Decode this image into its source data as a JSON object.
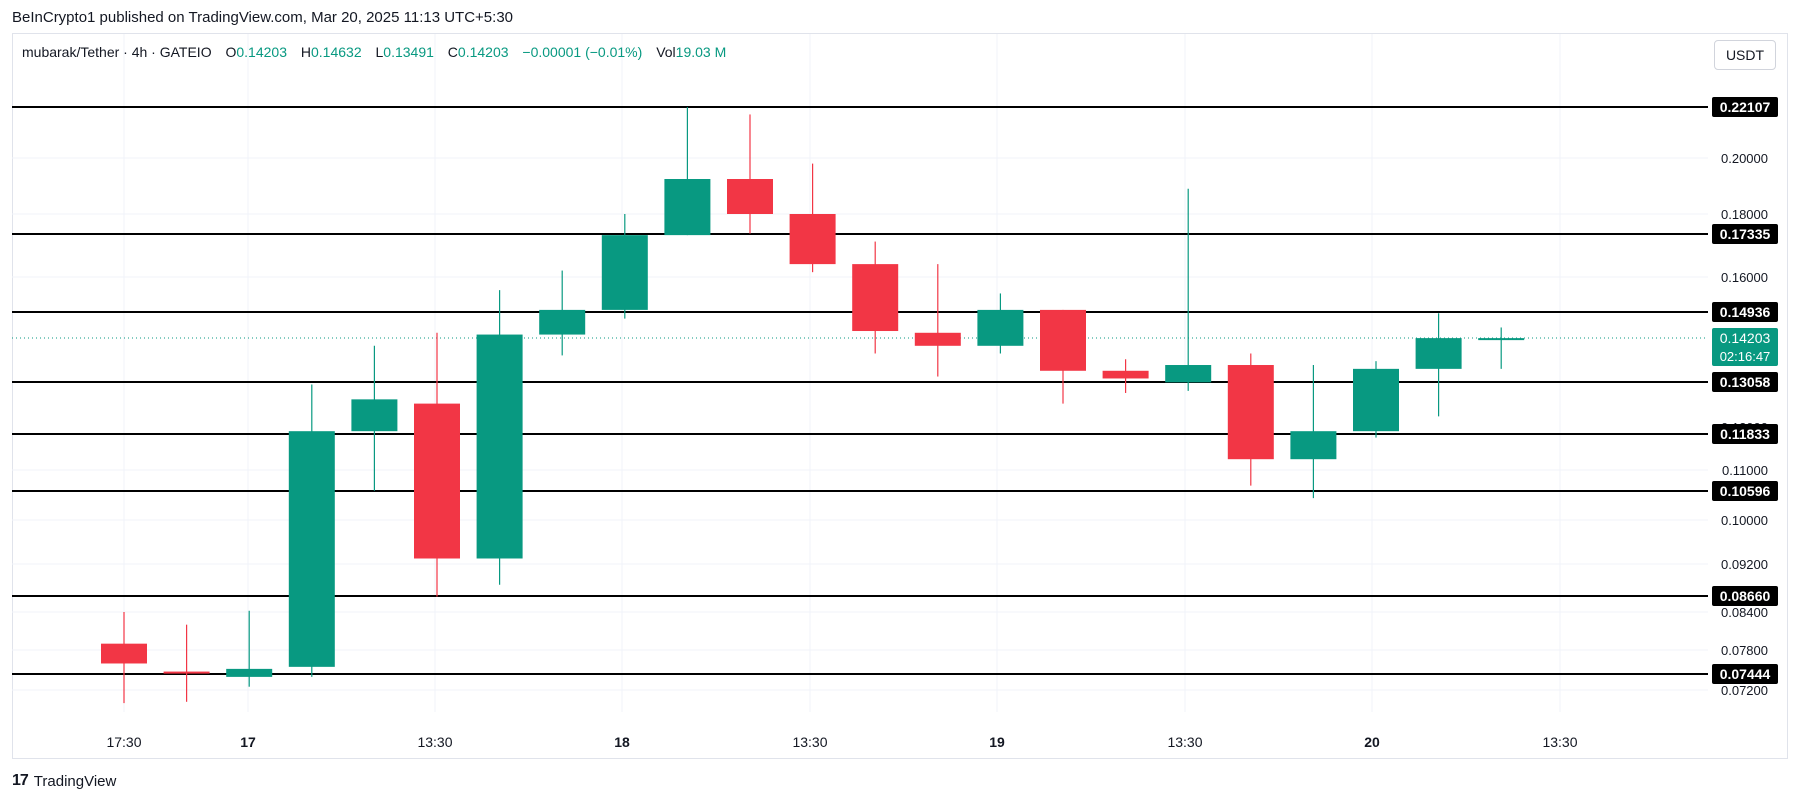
{
  "published_line": "BeInCrypto1 published on TradingView.com, Mar 20, 2025 11:13 UTC+5:30",
  "header": {
    "symbol": "mubarak/Tether · 4h · GATEIO",
    "o_label": "O",
    "o_value": "0.14203",
    "h_label": "H",
    "h_value": "0.14632",
    "l_label": "L",
    "l_value": "0.13491",
    "c_label": "C",
    "c_value": "0.14203",
    "change": "−0.00001 (−0.01%)",
    "vol_label": "Vol",
    "vol_value": "19.03 M"
  },
  "currency_button": "USDT",
  "footer": {
    "logo_mark": "17",
    "brand": "TradingView"
  },
  "colors": {
    "up": "#089981",
    "down": "#f23645",
    "grid": "#f0f3fa",
    "level": "#000000",
    "current": "#089981"
  },
  "chart_data": {
    "type": "candlestick",
    "title": "",
    "y_axis_ticks": [
      "0.20000",
      "0.18000",
      "0.16000",
      "0.11000",
      "0.10000",
      "0.09200",
      "0.08400",
      "0.07800",
      "0.07200"
    ],
    "y_axis_partially_hidden": [
      "0.12000"
    ],
    "x_axis_ticks": [
      "17:30",
      "17",
      "13:30",
      "18",
      "13:30",
      "19",
      "13:30",
      "20",
      "13:30"
    ],
    "horizontal_levels": [
      "0.22107",
      "0.17335",
      "0.14936",
      "0.13058",
      "0.11833",
      "0.10596",
      "0.08660",
      "0.07444"
    ],
    "current_price": "0.14203",
    "countdown": "02:16:47",
    "candles": [
      {
        "open": 0.079,
        "high": 0.084,
        "low": 0.07,
        "close": 0.076
      },
      {
        "open": 0.0748,
        "high": 0.082,
        "low": 0.0702,
        "close": 0.0745
      },
      {
        "open": 0.074,
        "high": 0.0842,
        "low": 0.0725,
        "close": 0.0752
      },
      {
        "open": 0.0755,
        "high": 0.13,
        "low": 0.074,
        "close": 0.119
      },
      {
        "open": 0.119,
        "high": 0.14,
        "low": 0.106,
        "close": 0.1265
      },
      {
        "open": 0.1255,
        "high": 0.1435,
        "low": 0.0865,
        "close": 0.093
      },
      {
        "open": 0.093,
        "high": 0.156,
        "low": 0.0885,
        "close": 0.143
      },
      {
        "open": 0.143,
        "high": 0.162,
        "low": 0.1375,
        "close": 0.15
      },
      {
        "open": 0.15,
        "high": 0.18,
        "low": 0.1475,
        "close": 0.173
      },
      {
        "open": 0.173,
        "high": 0.221,
        "low": 0.173,
        "close": 0.1925
      },
      {
        "open": 0.1925,
        "high": 0.218,
        "low": 0.1735,
        "close": 0.18
      },
      {
        "open": 0.18,
        "high": 0.198,
        "low": 0.1615,
        "close": 0.164
      },
      {
        "open": 0.164,
        "high": 0.171,
        "low": 0.138,
        "close": 0.144
      },
      {
        "open": 0.1435,
        "high": 0.164,
        "low": 0.132,
        "close": 0.14
      },
      {
        "open": 0.14,
        "high": 0.155,
        "low": 0.138,
        "close": 0.15
      },
      {
        "open": 0.15,
        "high": 0.15,
        "low": 0.1255,
        "close": 0.1335
      },
      {
        "open": 0.1335,
        "high": 0.1365,
        "low": 0.128,
        "close": 0.1315
      },
      {
        "open": 0.1305,
        "high": 0.189,
        "low": 0.1285,
        "close": 0.135
      },
      {
        "open": 0.135,
        "high": 0.138,
        "low": 0.107,
        "close": 0.1125
      },
      {
        "open": 0.1125,
        "high": 0.135,
        "low": 0.1045,
        "close": 0.119
      },
      {
        "open": 0.119,
        "high": 0.136,
        "low": 0.1175,
        "close": 0.134
      },
      {
        "open": 0.134,
        "high": 0.149,
        "low": 0.1225,
        "close": 0.142
      },
      {
        "open": 0.142,
        "high": 0.145,
        "low": 0.134,
        "close": 0.142
      }
    ]
  }
}
